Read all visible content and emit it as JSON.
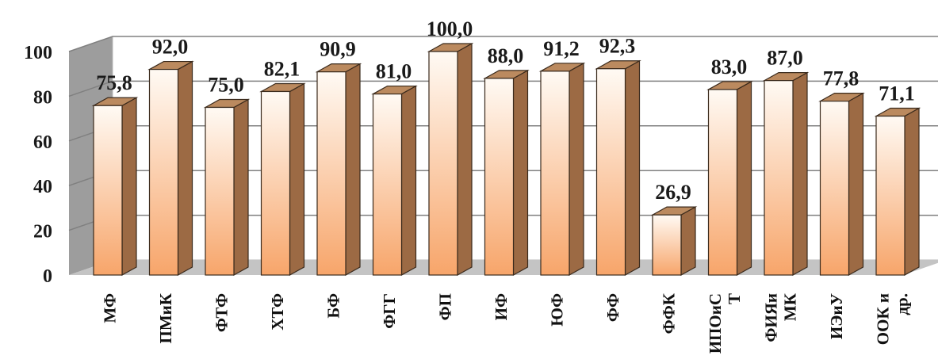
{
  "chart_data": {
    "type": "bar",
    "style": "3d-column",
    "categories": [
      [
        "МФ"
      ],
      [
        "ПМиК"
      ],
      [
        "ФТФ"
      ],
      [
        "ХТФ"
      ],
      [
        "БФ"
      ],
      [
        "ФГГ"
      ],
      [
        "ФП"
      ],
      [
        "ИФ"
      ],
      [
        "ЮФ"
      ],
      [
        "ФФ"
      ],
      [
        "ФФК"
      ],
      [
        "ИПОиС",
        "Т"
      ],
      [
        "ФИЯи",
        "МК"
      ],
      [
        "ИЭиУ"
      ],
      [
        "ООК и",
        "др."
      ]
    ],
    "values": [
      75.8,
      92.0,
      75.0,
      82.1,
      90.9,
      81.0,
      100.0,
      88.0,
      91.2,
      92.3,
      26.9,
      83.0,
      87.0,
      77.8,
      71.1
    ],
    "value_labels": [
      "75,8",
      "92,0",
      "75,0",
      "82,1",
      "90,9",
      "81,0",
      "100,0",
      "88,0",
      "91,2",
      "92,3",
      "26,9",
      "83,0",
      "87,0",
      "77,8",
      "71,1"
    ],
    "y_ticks": [
      "0",
      "20",
      "40",
      "60",
      "80",
      "100"
    ],
    "ylim": [
      0,
      100
    ],
    "grid": true,
    "colors": {
      "bar_front_top": "#fffaf4",
      "bar_front_bottom": "#f7a56a",
      "bar_side": "#9c6a44",
      "bar_top": "#bb8a5f",
      "back_wall": "#ffffff",
      "side_wall": "#9d9d9d",
      "floor": "#c4c4c4",
      "gridline": "#808080"
    }
  }
}
